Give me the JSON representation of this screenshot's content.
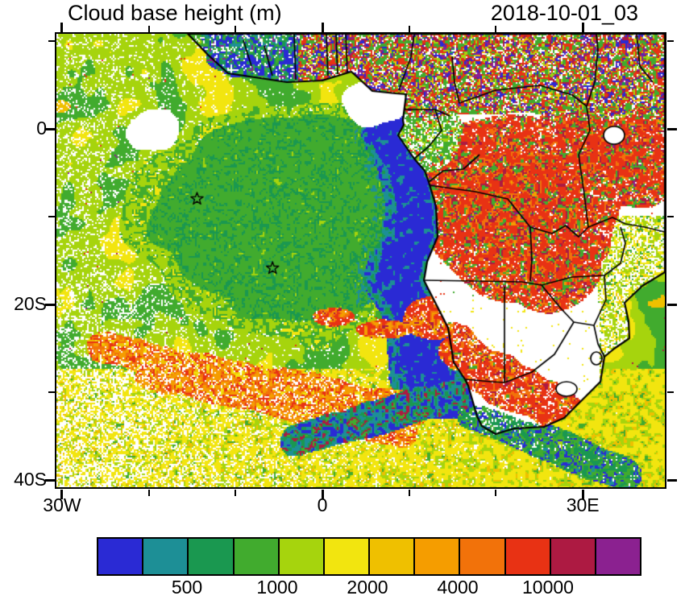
{
  "header": {
    "title": "Cloud base height (m)",
    "timestamp": "2018-10-01_03"
  },
  "axes": {
    "y_ticks": [
      {
        "label": "0",
        "lat": 0
      },
      {
        "label": "20S",
        "lat": -20
      },
      {
        "label": "40S",
        "lat": -40
      }
    ],
    "x_ticks": [
      {
        "label": "30W",
        "lon": -30
      },
      {
        "label": "0",
        "lon": 0
      },
      {
        "label": "30E",
        "lon": 30
      }
    ]
  },
  "colorbar": {
    "colors": [
      "#2a2ad4",
      "#1d8f96",
      "#1a9850",
      "#41ab2e",
      "#a6d40d",
      "#f2e50f",
      "#efc000",
      "#f59d00",
      "#f2720a",
      "#e83214",
      "#ad1a42",
      "#8b2190"
    ],
    "labels": [
      {
        "text": "500",
        "boundary_index": 2
      },
      {
        "text": "1000",
        "boundary_index": 4
      },
      {
        "text": "2000",
        "boundary_index": 6
      },
      {
        "text": "4000",
        "boundary_index": 8
      },
      {
        "text": "10000",
        "boundary_index": 10
      }
    ]
  },
  "chart_data": {
    "type": "heatmap",
    "title": "Cloud base height (m)",
    "timestamp": "2018-10-01_03",
    "units": "m",
    "projection": "lat-lon",
    "extent": {
      "lon_min": -30.6,
      "lon_max": 39.5,
      "lat_min": -40.7,
      "lat_max": 10.8
    },
    "x_tick_labels": [
      "30W",
      "0",
      "30E"
    ],
    "y_tick_labels": [
      "0",
      "20S",
      "40S"
    ],
    "colorbar_tick_values": [
      500,
      1000,
      2000,
      4000,
      10000
    ],
    "n_color_classes": 12,
    "grid": false,
    "legend_position": "bottom",
    "markers": [
      {
        "symbol": "star",
        "lon": -14.4,
        "lat": -8.0
      },
      {
        "symbol": "star",
        "lon": -5.7,
        "lat": -15.9
      }
    ],
    "features": [
      {
        "region": "SE Atlantic off Angola/Namibia coast",
        "description": "stratocumulus deck with very low cloud base (blue/teal)",
        "value_m": "250-700"
      },
      {
        "region": "central South Atlantic gyre",
        "description": "large green cloud deck",
        "value_m": "700-1400"
      },
      {
        "region": "western and southwestern Atlantic",
        "description": "broken yellow/yellow-green field with clear gaps",
        "value_m": "1400-4000"
      },
      {
        "region": "Congo basin and East Africa",
        "description": "deep convection, very high cloud base (red/maroon/purple)",
        "value_m": "6000-16000"
      },
      {
        "region": "Namibia to South Africa interior",
        "description": "red/orange convective streak; mostly clear elsewhere",
        "value_m": "4000-10000"
      },
      {
        "region": "south of 30S frontal zone",
        "description": "orange/red streaks with dark blue-green band near coast",
        "value_m": "mixed"
      }
    ]
  }
}
